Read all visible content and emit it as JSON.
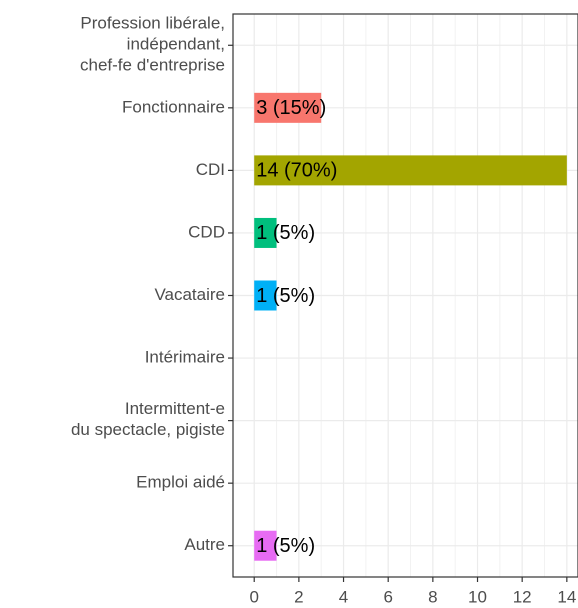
{
  "chart_data": {
    "type": "bar",
    "orientation": "horizontal",
    "categories": [
      [
        "Profession libérale,",
        "indépendant,",
        "chef-fe d'entreprise"
      ],
      "Fonctionnaire",
      "CDI",
      "CDD",
      "Vacataire",
      "Intérimaire",
      [
        "Intermittent-e",
        "du spectacle, pigiste"
      ],
      "Emploi aidé",
      "Autre"
    ],
    "values": [
      0,
      3,
      14,
      1,
      1,
      0,
      0,
      0,
      1
    ],
    "value_labels": [
      null,
      "3 (15%)",
      "14 (70%)",
      "1 (5%)",
      "1 (5%)",
      null,
      null,
      null,
      "1 (5%)"
    ],
    "colors": [
      null,
      "#F8766D",
      "#A3A500",
      "#00BF7D",
      "#00B0F6",
      null,
      null,
      null,
      "#E76BF3"
    ],
    "xlim": [
      -0.95,
      14.5
    ],
    "xticks": [
      0,
      2,
      4,
      6,
      8,
      10,
      12,
      14
    ],
    "grid": true
  }
}
